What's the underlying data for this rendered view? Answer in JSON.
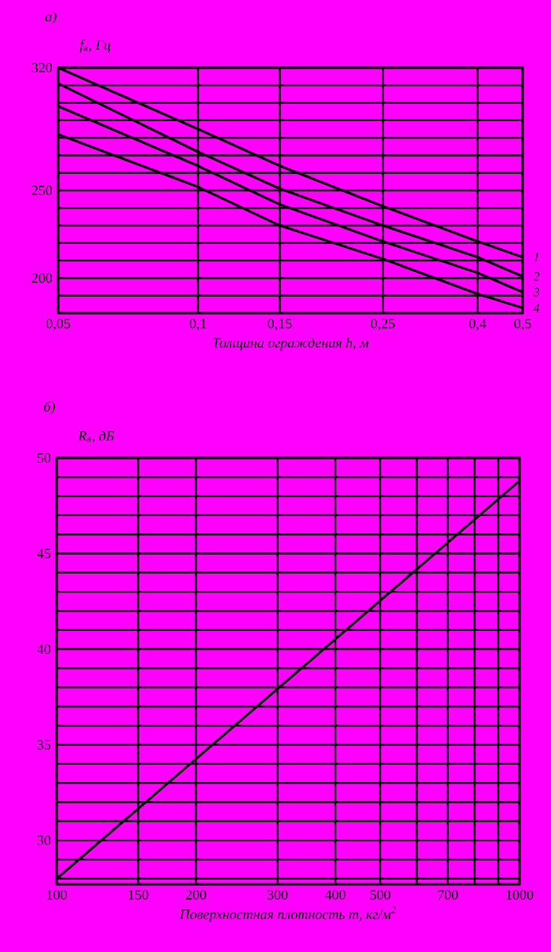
{
  "chart_data": [
    {
      "type": "line",
      "title": "а)",
      "ylabel": "*f*$_{в}$, Гц",
      "xlabel": "Толщина ограждения h, м",
      "log": "x",
      "grid": true,
      "x": [
        0.05,
        0.1,
        0.15,
        0.25,
        0.4,
        0.5
      ],
      "xlim": [
        0.05,
        0.5
      ],
      "xticks": [
        {
          "value": 0.05,
          "label": "0,05"
        },
        {
          "value": 0.1,
          "label": "0,1"
        },
        {
          "value": 0.15,
          "label": "0,15"
        },
        {
          "value": 0.25,
          "label": "0,25"
        },
        {
          "value": 0.4,
          "label": "0,4"
        },
        {
          "value": 0.5,
          "label": "0,5"
        }
      ],
      "ylim": [
        180,
        320
      ],
      "yticks": [
        {
          "value": 190,
          "label": null
        },
        200,
        {
          "value": 210,
          "label": null
        },
        {
          "value": 220,
          "label": null
        },
        {
          "value": 230,
          "label": null
        },
        {
          "value": 240,
          "label": null
        },
        250,
        {
          "value": 260,
          "label": null
        },
        {
          "value": 270,
          "label": null
        },
        {
          "value": 280,
          "label": null
        },
        {
          "value": 290,
          "label": null
        },
        {
          "value": 300,
          "label": null
        },
        {
          "value": 310,
          "label": null
        },
        320
      ],
      "series": [
        {
          "name": "1",
          "color": "#000000",
          "values": [
            320,
            285,
            264,
            241,
            221,
            212
          ]
        },
        {
          "name": "2",
          "color": "#000000",
          "values": [
            311,
            272,
            251,
            230,
            212,
            201
          ]
        },
        {
          "name": "3",
          "color": "#000000",
          "values": [
            298,
            264,
            242,
            221,
            203,
            192
          ]
        },
        {
          "name": "4",
          "color": "#000000",
          "values": [
            282,
            252,
            230,
            211,
            191,
            183
          ]
        }
      ]
    },
    {
      "type": "line",
      "title": "б)",
      "ylabel": "*R*$_{в}$, дБ",
      "xlabel": "Поверхностная плотность m, кг/м$^{2}$",
      "log": "x",
      "grid": true,
      "x": [
        100,
        1000
      ],
      "xlim": [
        100,
        1000
      ],
      "xticks": [
        100,
        150,
        200,
        300,
        400,
        500,
        {
          "value": 600,
          "label": null
        },
        700,
        {
          "value": 800,
          "label": null
        },
        {
          "value": 900,
          "label": null
        },
        1000
      ],
      "ylim": [
        27.7,
        50
      ],
      "yticks": [
        {
          "value": 28,
          "label": null
        },
        {
          "value": 29,
          "label": null
        },
        30,
        {
          "value": 31,
          "label": null
        },
        {
          "value": 32,
          "label": null
        },
        {
          "value": 33,
          "label": null
        },
        {
          "value": 34,
          "label": null
        },
        35,
        {
          "value": 36,
          "label": null
        },
        {
          "value": 37,
          "label": null
        },
        {
          "value": 38,
          "label": null
        },
        {
          "value": 39,
          "label": null
        },
        40,
        {
          "value": 41,
          "label": null
        },
        {
          "value": 42,
          "label": null
        },
        {
          "value": 43,
          "label": null
        },
        {
          "value": 44,
          "label": null
        },
        45,
        {
          "value": 46,
          "label": null
        },
        {
          "value": 47,
          "label": null
        },
        {
          "value": 48,
          "label": null
        },
        {
          "value": 49,
          "label": null
        },
        50
      ],
      "series": [
        {
          "color": "#000000",
          "values": [
            28,
            48.8
          ]
        }
      ]
    }
  ]
}
